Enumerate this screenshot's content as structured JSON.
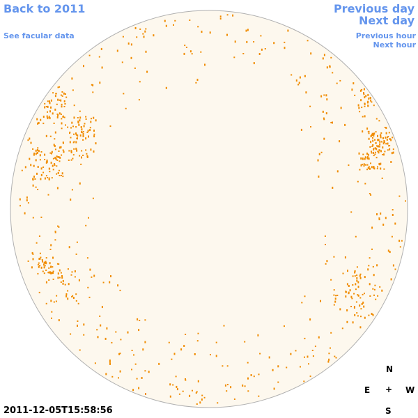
{
  "links": {
    "back": "Back to 2011",
    "previous_day": "Previous day",
    "next_day": "Next day",
    "facular_data": "See facular data",
    "previous_hour": "Previous hour",
    "next_hour": "Next hour"
  },
  "compass": {
    "north": "N",
    "east": "E",
    "center": "+",
    "west": "W",
    "south": "S"
  },
  "timestamp": "2011-12-05T15:58:56"
}
